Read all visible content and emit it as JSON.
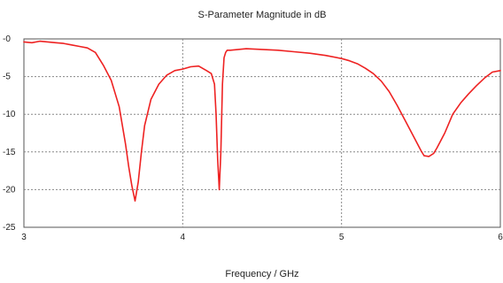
{
  "chart_data": {
    "type": "line",
    "title": "S-Parameter Magnitude in dB",
    "xlabel": "Frequency / GHz",
    "ylabel": "",
    "xlim": [
      3,
      6
    ],
    "ylim": [
      -25,
      0
    ],
    "x_ticks": [
      3,
      4,
      5,
      6
    ],
    "x_tick_labels": [
      "3",
      "4",
      "5",
      "6"
    ],
    "y_ticks": [
      0,
      -5,
      -10,
      -15,
      -20,
      -25
    ],
    "y_tick_labels": [
      "-0",
      "-5",
      "-10",
      "-15",
      "-20",
      "-25"
    ],
    "grid": true,
    "legend": "none",
    "series": [
      {
        "color": "#ee2222",
        "x": [
          3.0,
          3.05,
          3.1,
          3.15,
          3.2,
          3.25,
          3.3,
          3.35,
          3.4,
          3.45,
          3.5,
          3.55,
          3.6,
          3.62,
          3.64,
          3.66,
          3.68,
          3.7,
          3.72,
          3.74,
          3.76,
          3.8,
          3.85,
          3.9,
          3.95,
          4.0,
          4.05,
          4.1,
          4.15,
          4.18,
          4.2,
          4.21,
          4.22,
          4.23,
          4.24,
          4.25,
          4.26,
          4.27,
          4.28,
          4.3,
          4.35,
          4.4,
          4.5,
          4.6,
          4.7,
          4.8,
          4.9,
          5.0,
          5.05,
          5.1,
          5.15,
          5.2,
          5.25,
          5.3,
          5.35,
          5.4,
          5.45,
          5.5,
          5.52,
          5.55,
          5.58,
          5.6,
          5.65,
          5.7,
          5.75,
          5.8,
          5.85,
          5.9,
          5.95,
          6.0
        ],
        "y": [
          -0.4,
          -0.5,
          -0.3,
          -0.4,
          -0.5,
          -0.6,
          -0.8,
          -1.0,
          -1.2,
          -1.8,
          -3.5,
          -5.5,
          -9.0,
          -11.5,
          -14.0,
          -17.0,
          -19.5,
          -21.5,
          -19.0,
          -15.0,
          -11.5,
          -8.0,
          -6.0,
          -4.8,
          -4.2,
          -4.0,
          -3.7,
          -3.6,
          -4.2,
          -4.6,
          -6.0,
          -10.0,
          -16.0,
          -20.0,
          -15.0,
          -6.0,
          -2.5,
          -1.8,
          -1.5,
          -1.5,
          -1.4,
          -1.3,
          -1.4,
          -1.5,
          -1.7,
          -1.9,
          -2.2,
          -2.6,
          -2.9,
          -3.3,
          -3.9,
          -4.6,
          -5.6,
          -7.0,
          -8.8,
          -10.8,
          -12.8,
          -14.8,
          -15.5,
          -15.6,
          -15.2,
          -14.5,
          -12.5,
          -10.0,
          -8.5,
          -7.3,
          -6.2,
          -5.2,
          -4.4,
          -4.2
        ]
      }
    ]
  }
}
